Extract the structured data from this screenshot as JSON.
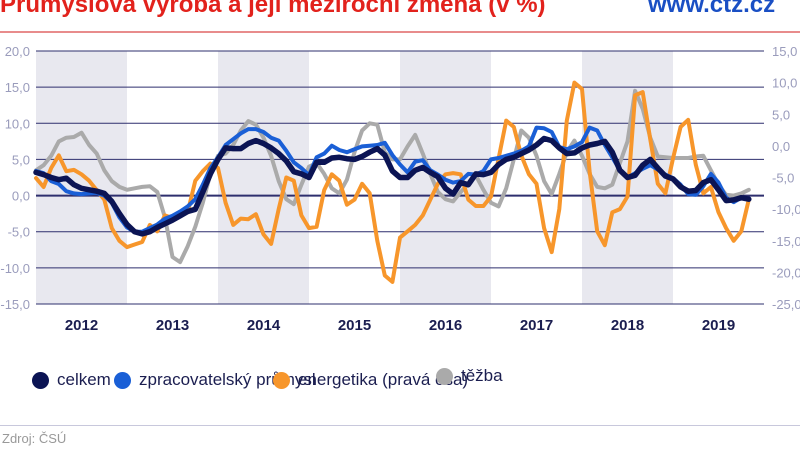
{
  "header": {
    "title": "Průmyslová výroba a její meziroční změna (v %)",
    "brand": "www.ctz.cz"
  },
  "footer": {
    "source": "Zdroj: ČSÚ"
  },
  "colors": {
    "celkem": "#0b1454",
    "zpracovatelsky": "#1a5fd6",
    "energetika": "#f7962b",
    "tezba": "#aaaaaa",
    "band": "#e8e8ef",
    "grid": "#2e2f6e",
    "title": "#e2221c"
  },
  "chart_data": {
    "type": "line",
    "title": "Průmyslová výroba a její meziroční změna (v %)",
    "x_start": "2012-01",
    "x_end": "2019-11",
    "frequency": "monthly",
    "x_tick_labels": [
      "2012",
      "2013",
      "2014",
      "2015",
      "2016",
      "2017",
      "2018",
      "2019"
    ],
    "shaded_years": [
      "2012",
      "2014",
      "2016",
      "2018"
    ],
    "y_left": {
      "range": [
        -15,
        20
      ],
      "ticks": [
        "20,0",
        "15,0",
        "10,0",
        "5,0",
        "0,0",
        "-5,0",
        "-10,0",
        "-15,0"
      ]
    },
    "y_right": {
      "range": [
        -25,
        15
      ],
      "ticks": [
        "15,0",
        "10,0",
        "5,0",
        "0,0",
        "-5,0",
        "-10,0",
        "-15,0",
        "-20,0",
        "-25,0"
      ]
    },
    "grid": true,
    "legend_position": "bottom",
    "series": [
      {
        "name": "celkem",
        "axis": "left",
        "color": "#0b1454",
        "values": [
          3.2,
          2.9,
          2.5,
          2.2,
          2.4,
          1.5,
          1.0,
          0.8,
          0.6,
          0.3,
          -0.8,
          -2.5,
          -4.0,
          -5.0,
          -5.3,
          -5.0,
          -4.4,
          -3.9,
          -3.4,
          -2.8,
          -2.2,
          -1.9,
          0.5,
          3.0,
          5.0,
          6.6,
          6.5,
          6.5,
          7.2,
          7.6,
          7.2,
          6.6,
          5.8,
          4.8,
          3.3,
          3.0,
          2.5,
          4.6,
          4.6,
          5.2,
          5.3,
          5.1,
          5.0,
          5.4,
          6.0,
          6.5,
          5.6,
          3.4,
          2.5,
          2.5,
          3.5,
          3.9,
          3.2,
          2.6,
          1.0,
          0.2,
          1.8,
          1.5,
          3.0,
          2.9,
          3.2,
          4.3,
          5.0,
          5.3,
          5.8,
          6.3,
          7.0,
          7.9,
          7.6,
          6.6,
          5.8,
          5.9,
          6.6,
          7.0,
          7.2,
          7.5,
          6.0,
          3.5,
          2.5,
          2.8,
          4.2,
          5.0,
          3.8,
          2.7,
          2.3,
          1.2,
          0.6,
          0.7,
          1.8,
          2.2,
          0.8,
          -0.7,
          -0.6,
          -0.3,
          -0.5
        ]
      },
      {
        "name": "zpracovatelský průmysl",
        "axis": "left",
        "color": "#1a5fd6",
        "values": [
          3.4,
          3.1,
          2.0,
          1.6,
          0.6,
          0.3,
          0.2,
          0.3,
          0.4,
          0.0,
          -1.0,
          -3.0,
          -4.4,
          -5.0,
          -5.0,
          -4.5,
          -4.0,
          -3.2,
          -2.8,
          -2.2,
          -1.5,
          -0.5,
          1.5,
          3.8,
          5.3,
          7.0,
          7.8,
          8.6,
          9.2,
          9.2,
          8.8,
          8.0,
          7.6,
          6.2,
          4.6,
          3.8,
          2.8,
          5.3,
          5.8,
          6.9,
          6.3,
          6.0,
          6.4,
          6.8,
          6.9,
          7.0,
          7.3,
          5.6,
          4.3,
          3.2,
          4.7,
          4.9,
          3.5,
          2.9,
          2.2,
          1.8,
          2.0,
          3.0,
          2.9,
          3.4,
          5.0,
          5.2,
          5.5,
          5.8,
          6.2,
          6.8,
          9.4,
          9.3,
          8.8,
          6.7,
          6.4,
          6.8,
          7.4,
          9.4,
          9.0,
          7.0,
          5.3,
          3.5,
          2.5,
          3.1,
          3.7,
          4.2,
          3.6,
          2.9,
          2.4,
          1.5,
          0.2,
          0.1,
          1.3,
          3.0,
          1.8,
          -0.3,
          -0.9,
          -0.3,
          -0.4
        ]
      },
      {
        "name": "energetika (pravá osa)",
        "axis": "right",
        "color": "#f7962b",
        "values": [
          -5.1,
          -6.5,
          -3.5,
          -1.5,
          -4.0,
          -3.8,
          -4.5,
          -5.5,
          -7.0,
          -8.5,
          -13.0,
          -15.0,
          -16.0,
          -15.6,
          -15.2,
          -12.5,
          -13.5,
          -11.0,
          -11.4,
          -10.7,
          -10.5,
          -5.5,
          -4.0,
          -2.8,
          -3.5,
          -9.0,
          -12.5,
          -11.5,
          -11.6,
          -10.8,
          -14.0,
          -15.5,
          -10.0,
          -5.0,
          -5.5,
          -11.0,
          -13.0,
          -12.8,
          -7.0,
          -4.5,
          -5.5,
          -9.3,
          -8.5,
          -6.0,
          -7.5,
          -15.0,
          -20.5,
          -21.5,
          -14.5,
          -13.5,
          -12.5,
          -11.0,
          -8.5,
          -6.0,
          -4.5,
          -4.3,
          -4.5,
          -8.5,
          -9.5,
          -9.5,
          -8.0,
          -2.0,
          4.0,
          3.0,
          -1.5,
          -4.5,
          -6.0,
          -13.0,
          -16.8,
          -10.0,
          4.0,
          10.0,
          9.0,
          -4.0,
          -13.5,
          -15.7,
          -10.5,
          -10.0,
          -8.0,
          8.0,
          8.5,
          1.0,
          -6.0,
          -7.5,
          -2.0,
          3.0,
          4.1,
          -3.0,
          -7.5,
          -6.5,
          -10.5,
          -13.0,
          -15.0,
          -13.5,
          -8.5
        ]
      },
      {
        "name": "těžba",
        "axis": "left",
        "color": "#aaaaaa",
        "values": [
          3.5,
          4.2,
          5.5,
          7.5,
          8.0,
          8.1,
          8.7,
          7.0,
          5.8,
          3.5,
          2.0,
          1.2,
          0.8,
          1.0,
          1.2,
          1.3,
          0.5,
          -3.0,
          -8.5,
          -9.2,
          -7.0,
          -4.3,
          -1.0,
          3.0,
          5.5,
          5.8,
          7.0,
          9.0,
          10.3,
          9.8,
          8.0,
          5.5,
          2.0,
          -0.5,
          -1.2,
          1.5,
          4.0,
          4.5,
          3.0,
          1.0,
          0.3,
          2.2,
          6.0,
          9.0,
          10.0,
          9.8,
          6.0,
          5.0,
          5.0,
          6.8,
          8.4,
          5.8,
          3.0,
          0.5,
          -0.5,
          -0.8,
          0.5,
          1.6,
          2.8,
          0.8,
          -1.0,
          -1.5,
          1.0,
          5.0,
          9.0,
          8.0,
          5.5,
          2.0,
          0.2,
          3.0,
          6.0,
          7.6,
          5.5,
          3.0,
          1.2,
          1.0,
          1.5,
          4.5,
          7.5,
          14.5,
          12.0,
          8.0,
          5.4,
          5.3,
          5.2,
          5.2,
          5.2,
          5.4,
          5.5,
          3.5,
          1.5,
          0.1,
          0.0,
          0.3,
          0.8
        ]
      }
    ]
  }
}
